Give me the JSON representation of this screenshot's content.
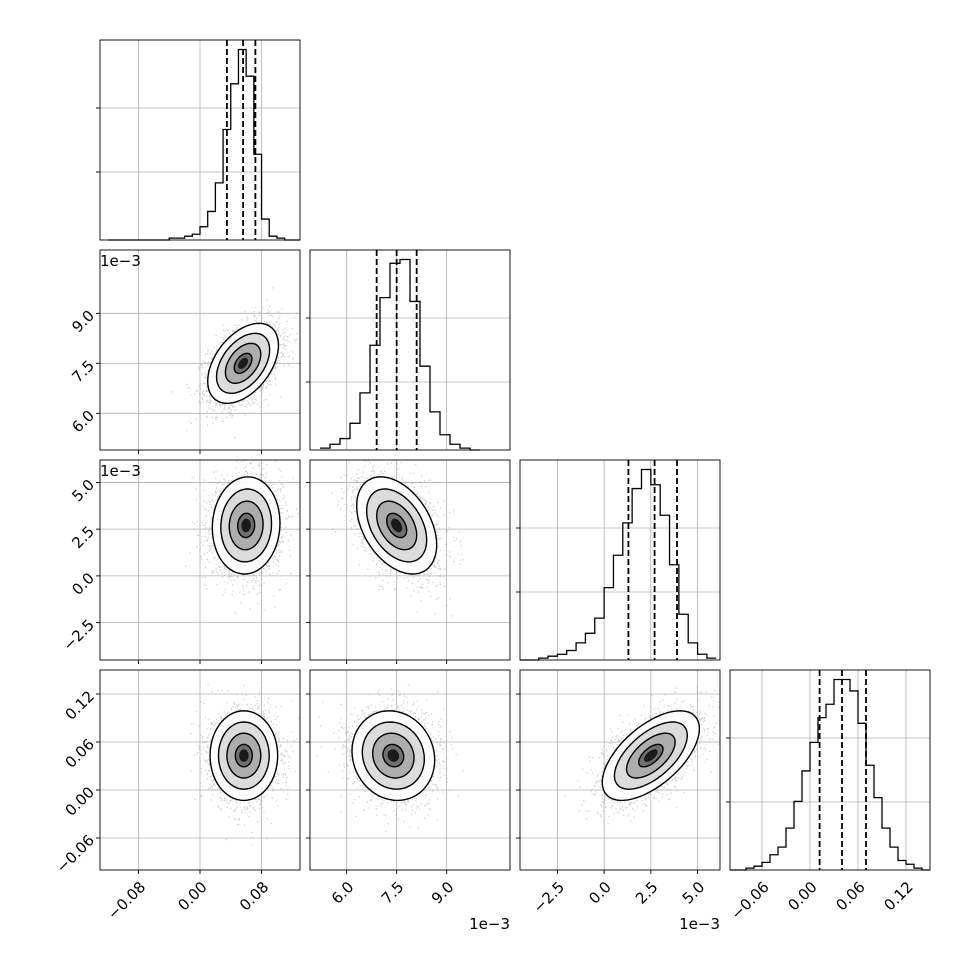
{
  "chart_data": {
    "type": "corner",
    "parameters": [
      {
        "id": "p0",
        "range": [
          -0.13,
          0.13
        ],
        "ticks": [
          -0.08,
          0.0,
          0.08
        ],
        "tick_labels": [
          "−0.08",
          "0.00",
          "0.08"
        ],
        "offset_text": ""
      },
      {
        "id": "p1",
        "range": [
          0.0049,
          0.0109
        ],
        "ticks": [
          0.006,
          0.0075,
          0.009
        ],
        "tick_labels": [
          "6.0",
          "7.5",
          "9.0"
        ],
        "offset_text": "1e−3"
      },
      {
        "id": "p2",
        "range": [
          -0.0045,
          0.0062
        ],
        "ticks": [
          -0.0025,
          0.0,
          0.0025,
          0.005
        ],
        "tick_labels": [
          "−2.5",
          "0.0",
          "2.5",
          "5.0"
        ],
        "offset_text": "1e−3"
      },
      {
        "id": "p3",
        "range": [
          -0.1,
          0.15
        ],
        "ticks": [
          -0.06,
          0.0,
          0.06,
          0.12
        ],
        "tick_labels": [
          "−0.06",
          "0.00",
          "0.06",
          "0.12"
        ],
        "offset_text": ""
      }
    ],
    "histograms": [
      {
        "param": "p0",
        "quantiles": [
          0.035,
          0.056,
          0.072
        ],
        "bins": [
          -0.12,
          -0.11,
          -0.1,
          -0.09,
          -0.08,
          -0.07,
          -0.06,
          -0.05,
          -0.04,
          -0.03,
          -0.02,
          -0.01,
          0.0,
          0.01,
          0.02,
          0.03,
          0.04,
          0.05,
          0.06,
          0.07,
          0.08,
          0.09,
          0.1,
          0.11,
          0.12,
          0.13
        ],
        "counts": [
          0,
          0,
          0,
          0,
          0,
          0,
          0,
          0,
          1,
          1,
          2,
          3,
          7,
          15,
          30,
          58,
          82,
          100,
          86,
          45,
          11,
          2,
          1,
          0,
          0
        ]
      },
      {
        "param": "p1",
        "quantiles": [
          0.0069,
          0.0075,
          0.0081
        ],
        "bins": [
          0.0052,
          0.0055,
          0.0058,
          0.0061,
          0.0064,
          0.0067,
          0.007,
          0.0073,
          0.0076,
          0.0079,
          0.0082,
          0.0085,
          0.0088,
          0.0091,
          0.0094,
          0.0097,
          0.01
        ],
        "counts": [
          1,
          3,
          6,
          14,
          30,
          55,
          80,
          98,
          100,
          78,
          44,
          20,
          8,
          3,
          1,
          0
        ]
      },
      {
        "param": "p2",
        "quantiles": [
          0.0013,
          0.0027,
          0.0039
        ],
        "bins": [
          -0.0045,
          -0.004,
          -0.0035,
          -0.003,
          -0.0025,
          -0.002,
          -0.0015,
          -0.001,
          -0.0005,
          0.0,
          0.0005,
          0.001,
          0.0015,
          0.002,
          0.0025,
          0.003,
          0.0035,
          0.004,
          0.0045,
          0.005,
          0.0055,
          0.006
        ],
        "counts": [
          0,
          0,
          1,
          2,
          3,
          5,
          9,
          14,
          22,
          38,
          55,
          72,
          90,
          100,
          92,
          76,
          50,
          24,
          9,
          3,
          1
        ]
      },
      {
        "param": "p3",
        "quantiles": [
          0.012,
          0.04,
          0.07
        ],
        "bins": [
          -0.1,
          -0.09,
          -0.08,
          -0.07,
          -0.06,
          -0.05,
          -0.04,
          -0.03,
          -0.02,
          -0.01,
          0.0,
          0.01,
          0.02,
          0.03,
          0.04,
          0.05,
          0.06,
          0.07,
          0.08,
          0.09,
          0.1,
          0.11,
          0.12,
          0.13,
          0.14,
          0.15
        ],
        "counts": [
          0,
          0,
          1,
          2,
          4,
          8,
          12,
          22,
          36,
          52,
          67,
          80,
          87,
          100,
          100,
          94,
          77,
          55,
          38,
          22,
          12,
          5,
          3,
          1,
          0
        ]
      }
    ],
    "panels_2d": [
      {
        "x": "p0",
        "y": "p1",
        "mean": [
          0.056,
          0.0075
        ],
        "sd": [
          0.023,
          0.0006
        ],
        "corr": 0.45
      },
      {
        "x": "p0",
        "y": "p2",
        "mean": [
          0.06,
          0.0027
        ],
        "sd": [
          0.022,
          0.0013
        ],
        "corr": 0.05
      },
      {
        "x": "p1",
        "y": "p2",
        "mean": [
          0.0075,
          0.0027
        ],
        "sd": [
          0.0006,
          0.0013
        ],
        "corr": -0.4
      },
      {
        "x": "p0",
        "y": "p3",
        "mean": [
          0.057,
          0.043
        ],
        "sd": [
          0.022,
          0.028
        ],
        "corr": 0.0
      },
      {
        "x": "p1",
        "y": "p3",
        "mean": [
          0.0074,
          0.043
        ],
        "sd": [
          0.00062,
          0.028
        ],
        "corr": -0.1
      },
      {
        "x": "p2",
        "y": "p3",
        "mean": [
          0.0025,
          0.043
        ],
        "sd": [
          0.0013,
          0.028
        ],
        "corr": 0.6
      }
    ],
    "contour_levels_sigma": [
      0.5,
      1.0,
      1.5,
      2.0
    ],
    "grid": true
  }
}
